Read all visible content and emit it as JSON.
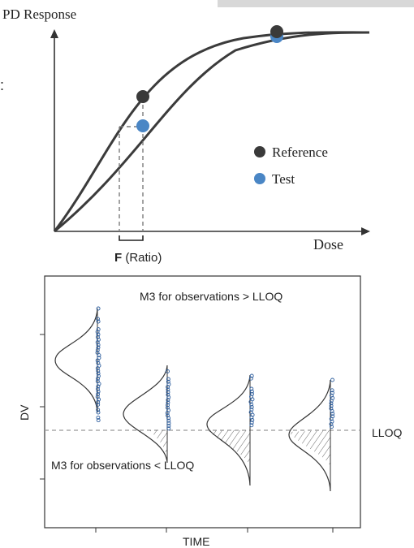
{
  "top_panel": {
    "y_axis_label": "PD Response",
    "x_axis_label": "Dose",
    "legend": [
      {
        "label": "Reference",
        "color": "#3a3a3a"
      },
      {
        "label": "Test",
        "color": "#4a86c5"
      }
    ],
    "bracket_label_bold": "F",
    "bracket_label_rest": " (Ratio)",
    "edge_glyph": ":"
  },
  "bottom_panel": {
    "y_axis_label": "DV",
    "x_axis_label": "TIME",
    "annotation_above": "M3 for observations > LLOQ",
    "annotation_below": "M3 for observations < LLOQ",
    "lloq_label": "LLOQ",
    "point_color": "#2f5f9e"
  },
  "colors": {
    "reference_curve": "#3b3b3b",
    "dashed_guides": "#7a7a7a",
    "top_tab_bar": "#d8d8d8"
  }
}
